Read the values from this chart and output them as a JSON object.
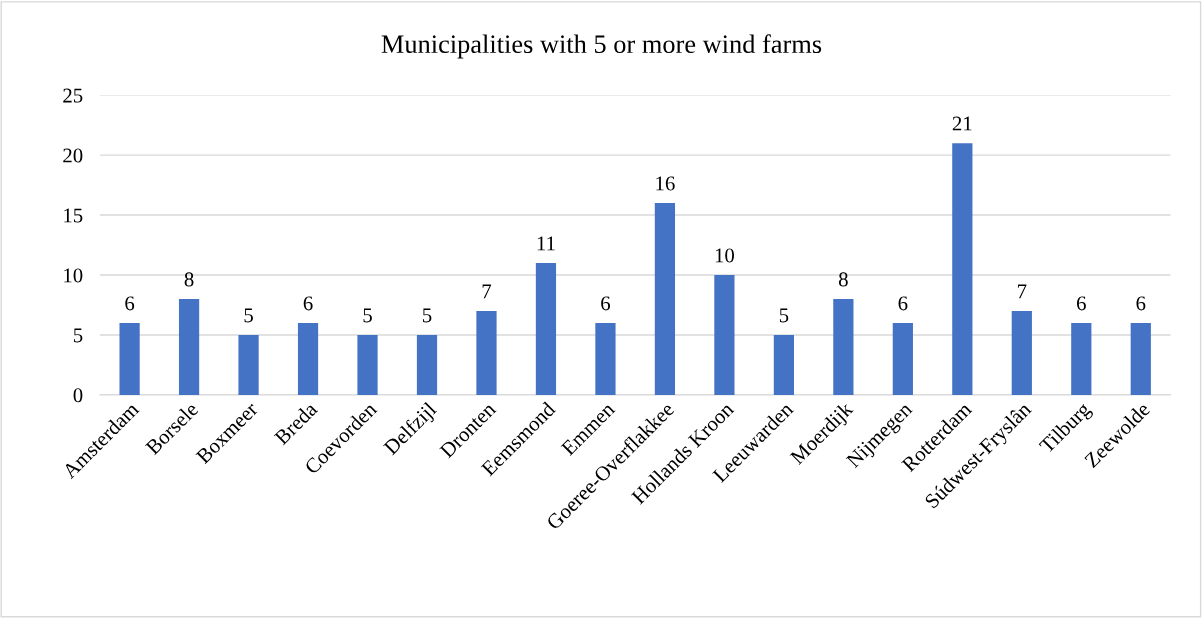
{
  "chart_data": {
    "type": "bar",
    "title": "Municipalities with 5 or more wind farms",
    "categories": [
      "Amsterdam",
      "Borsele",
      "Boxmeer",
      "Breda",
      "Coevorden",
      "Delfzijl",
      "Dronten",
      "Eemsmond",
      "Emmen",
      "Goeree-Overflakkee",
      "Hollands Kroon",
      "Leeuwarden",
      "Moerdijk",
      "Nijmegen",
      "Rotterdam",
      "Súdwest-Fryslân",
      "Tilburg",
      "Zeewolde"
    ],
    "values": [
      6,
      8,
      5,
      6,
      5,
      5,
      7,
      11,
      6,
      16,
      10,
      5,
      8,
      6,
      21,
      7,
      6,
      6
    ],
    "color": "#4472c4",
    "ylim": [
      0,
      25
    ],
    "yticks": [
      0,
      5,
      10,
      15,
      20,
      25
    ],
    "grid": "y",
    "data_labels": true
  }
}
